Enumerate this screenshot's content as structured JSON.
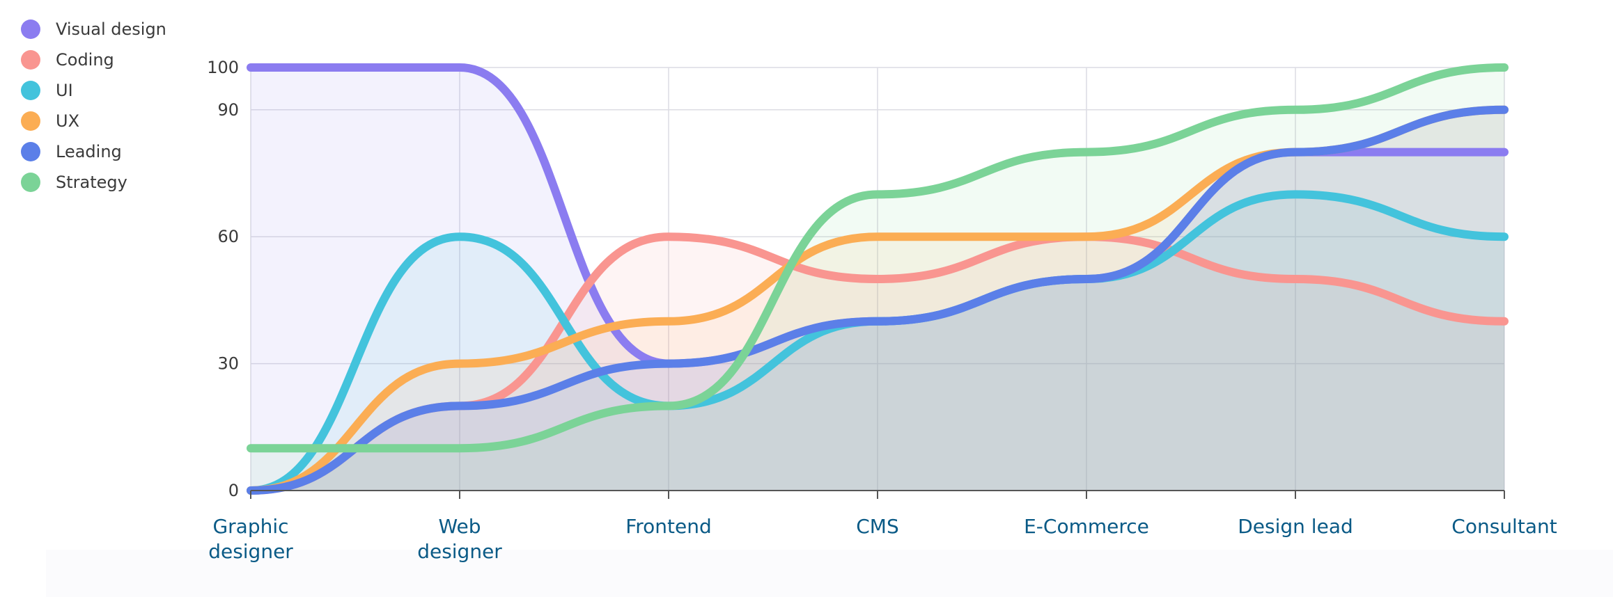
{
  "chart_data": {
    "type": "line",
    "area": true,
    "smooth": true,
    "categories": [
      "Graphic designer",
      "Web designer",
      "Frontend",
      "CMS",
      "E-Commerce",
      "Design lead",
      "Consultant"
    ],
    "y_ticks": [
      0,
      30,
      60,
      90,
      100
    ],
    "ylim": [
      0,
      100
    ],
    "grid": true,
    "legend_position": "top-left",
    "series": [
      {
        "name": "Visual design",
        "color": "#8b7cf0",
        "values": [
          100,
          100,
          30,
          40,
          50,
          80,
          80
        ]
      },
      {
        "name": "Coding",
        "color": "#f99590",
        "values": [
          0,
          20,
          60,
          50,
          60,
          50,
          40
        ]
      },
      {
        "name": "UI",
        "color": "#43c3dc",
        "values": [
          0,
          60,
          20,
          40,
          50,
          70,
          60
        ]
      },
      {
        "name": "UX",
        "color": "#fbad54",
        "values": [
          0,
          30,
          40,
          60,
          60,
          80,
          90
        ]
      },
      {
        "name": "Leading",
        "color": "#5b7fe8",
        "values": [
          0,
          20,
          30,
          40,
          50,
          80,
          90
        ]
      },
      {
        "name": "Strategy",
        "color": "#7bd397",
        "values": [
          10,
          10,
          20,
          70,
          80,
          90,
          100
        ]
      }
    ]
  }
}
